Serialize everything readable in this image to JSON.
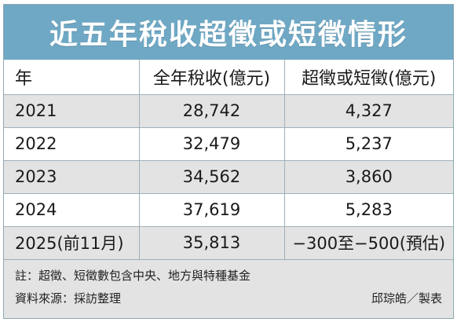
{
  "title": "近五年稅收超徵或短徵情形",
  "headers": {
    "year": "年",
    "tax_revenue": "全年稅收(億元)",
    "over_under": "超徵或短徵(億元)"
  },
  "rows": [
    {
      "year": "2021",
      "tax_revenue": "28,742",
      "over_under": "4,327"
    },
    {
      "year": "2022",
      "tax_revenue": "32,479",
      "over_under": "5,237"
    },
    {
      "year": "2023",
      "tax_revenue": "34,562",
      "over_under": "3,860"
    },
    {
      "year": "2024",
      "tax_revenue": "37,619",
      "over_under": "5,283"
    },
    {
      "year": "2025(前11月)",
      "tax_revenue": "35,813",
      "over_under": "−300至−500(預估)"
    }
  ],
  "note": "註：超徵、短徵數包含中央、地方與特種基金",
  "source": "資料來源：採訪整理",
  "credit": "邱琮皓／製表",
  "colors": {
    "title_bar": "#6fa8c4",
    "stripe": "#e3e3e3",
    "border": "#9fb0ba"
  }
}
